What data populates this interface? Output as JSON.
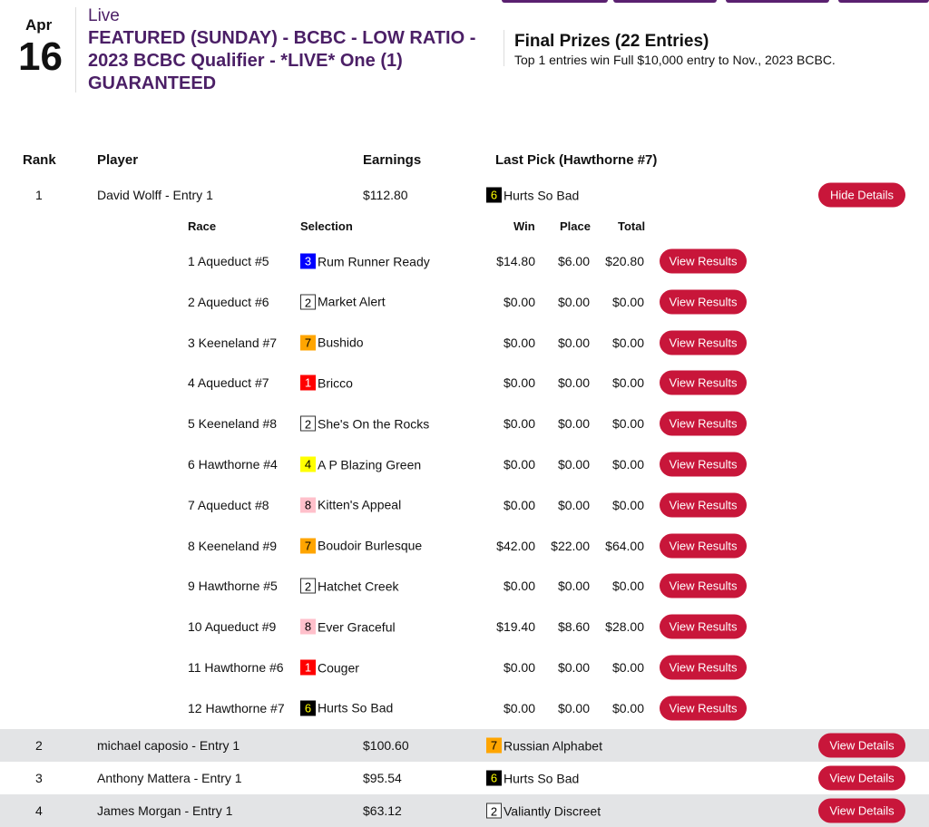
{
  "nav_tabs": [
    "",
    "",
    "",
    ""
  ],
  "event": {
    "month": "Apr",
    "day": "16",
    "status": "Live",
    "title": "FEATURED (SUNDAY) - BCBC - LOW RATIO - 2023 BCBC Qualifier - *LIVE* One (1) GUARANTEED"
  },
  "prizes": {
    "title": "Final Prizes (22 Entries)",
    "description": "Top 1 entries win Full $10,000 entry to Nov., 2023 BCBC."
  },
  "columns": {
    "rank": "Rank",
    "player": "Player",
    "earnings": "Earnings",
    "last_pick": "Last Pick (Hawthorne #7)"
  },
  "sub_columns": {
    "race": "Race",
    "selection": "Selection",
    "win": "Win",
    "place": "Place",
    "total": "Total"
  },
  "saddle_colors": {
    "1": [
      "#ff0000",
      "#ffffff"
    ],
    "2": [
      "#ffffff",
      "#000000"
    ],
    "3": [
      "#0000ff",
      "#ffffff"
    ],
    "4": [
      "#ffff00",
      "#000000"
    ],
    "6": [
      "#000000",
      "#ffff00"
    ],
    "7": [
      "#ffa500",
      "#000000"
    ],
    "8": [
      "#ffc0cb",
      "#000000"
    ]
  },
  "accent_color": "#c8163a",
  "entries": [
    {
      "rank": "1",
      "player": "David Wolff - Entry 1",
      "earnings": "$112.80",
      "pick_num": "6",
      "pick": "Hurts So Bad",
      "button": "Hide Details",
      "expanded": true,
      "details": [
        {
          "race": "1 Aqueduct #5",
          "num": "3",
          "horse": "Rum Runner Ready",
          "win": "$14.80",
          "place": "$6.00",
          "total": "$20.80",
          "button": "View Results"
        },
        {
          "race": "2 Aqueduct #6",
          "num": "2",
          "horse": "Market Alert",
          "win": "$0.00",
          "place": "$0.00",
          "total": "$0.00",
          "button": "View Results"
        },
        {
          "race": "3 Keeneland #7",
          "num": "7",
          "horse": "Bushido",
          "win": "$0.00",
          "place": "$0.00",
          "total": "$0.00",
          "button": "View Results"
        },
        {
          "race": "4 Aqueduct #7",
          "num": "1",
          "horse": "Bricco",
          "win": "$0.00",
          "place": "$0.00",
          "total": "$0.00",
          "button": "View Results"
        },
        {
          "race": "5 Keeneland #8",
          "num": "2",
          "horse": "She's On the Rocks",
          "win": "$0.00",
          "place": "$0.00",
          "total": "$0.00",
          "button": "View Results"
        },
        {
          "race": "6 Hawthorne #4",
          "num": "4",
          "horse": "A P Blazing Green",
          "win": "$0.00",
          "place": "$0.00",
          "total": "$0.00",
          "button": "View Results"
        },
        {
          "race": "7 Aqueduct #8",
          "num": "8",
          "horse": "Kitten's Appeal",
          "win": "$0.00",
          "place": "$0.00",
          "total": "$0.00",
          "button": "View Results"
        },
        {
          "race": "8 Keeneland #9",
          "num": "7",
          "horse": "Boudoir Burlesque",
          "win": "$42.00",
          "place": "$22.00",
          "total": "$64.00",
          "button": "View Results"
        },
        {
          "race": "9 Hawthorne #5",
          "num": "2",
          "horse": "Hatchet Creek",
          "win": "$0.00",
          "place": "$0.00",
          "total": "$0.00",
          "button": "View Results"
        },
        {
          "race": "10 Aqueduct #9",
          "num": "8",
          "horse": "Ever Graceful",
          "win": "$19.40",
          "place": "$8.60",
          "total": "$28.00",
          "button": "View Results"
        },
        {
          "race": "11 Hawthorne #6",
          "num": "1",
          "horse": "Couger",
          "win": "$0.00",
          "place": "$0.00",
          "total": "$0.00",
          "button": "View Results"
        },
        {
          "race": "12 Hawthorne #7",
          "num": "6",
          "horse": "Hurts So Bad",
          "win": "$0.00",
          "place": "$0.00",
          "total": "$0.00",
          "button": "View Results"
        }
      ]
    },
    {
      "rank": "2",
      "player": "michael caposio - Entry 1",
      "earnings": "$100.60",
      "pick_num": "7",
      "pick": "Russian Alphabet",
      "button": "View Details"
    },
    {
      "rank": "3",
      "player": "Anthony Mattera - Entry 1",
      "earnings": "$95.54",
      "pick_num": "6",
      "pick": "Hurts So Bad",
      "button": "View Details"
    },
    {
      "rank": "4",
      "player": "James Morgan - Entry 1",
      "earnings": "$63.12",
      "pick_num": "2",
      "pick": "Valiantly Discreet",
      "button": "View Details"
    }
  ]
}
